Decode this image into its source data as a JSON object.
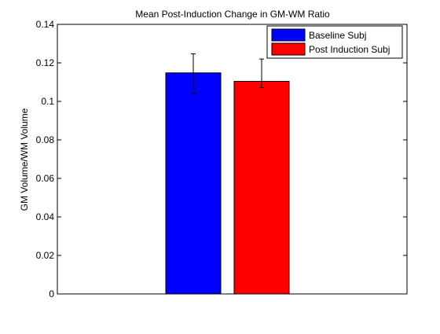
{
  "figure": {
    "background": "#ffffff"
  },
  "chart_data": {
    "type": "bar",
    "title": "Mean Post-Induction Change in GM-WM Ratio",
    "xlabel": "",
    "ylabel": "GM Volume/WM Volume",
    "ylim": [
      0,
      0.14
    ],
    "yticks": [
      0,
      0.02,
      0.04,
      0.06,
      0.08,
      0.1,
      0.12,
      0.14
    ],
    "ytick_labels": [
      "0",
      "0.02",
      "0.04",
      "0.06",
      "0.08",
      "0.1",
      "0.12",
      "0.14"
    ],
    "grid": false,
    "legend_position": "top-right",
    "series": [
      {
        "name": "Baseline Subj",
        "value": 0.1148,
        "error_low": 0.104,
        "error_high": 0.1247,
        "color": "#0000ff"
      },
      {
        "name": "Post Induction Subj",
        "value": 0.1104,
        "error_low": 0.1071,
        "error_high": 0.122,
        "color": "#ff0000"
      }
    ]
  }
}
